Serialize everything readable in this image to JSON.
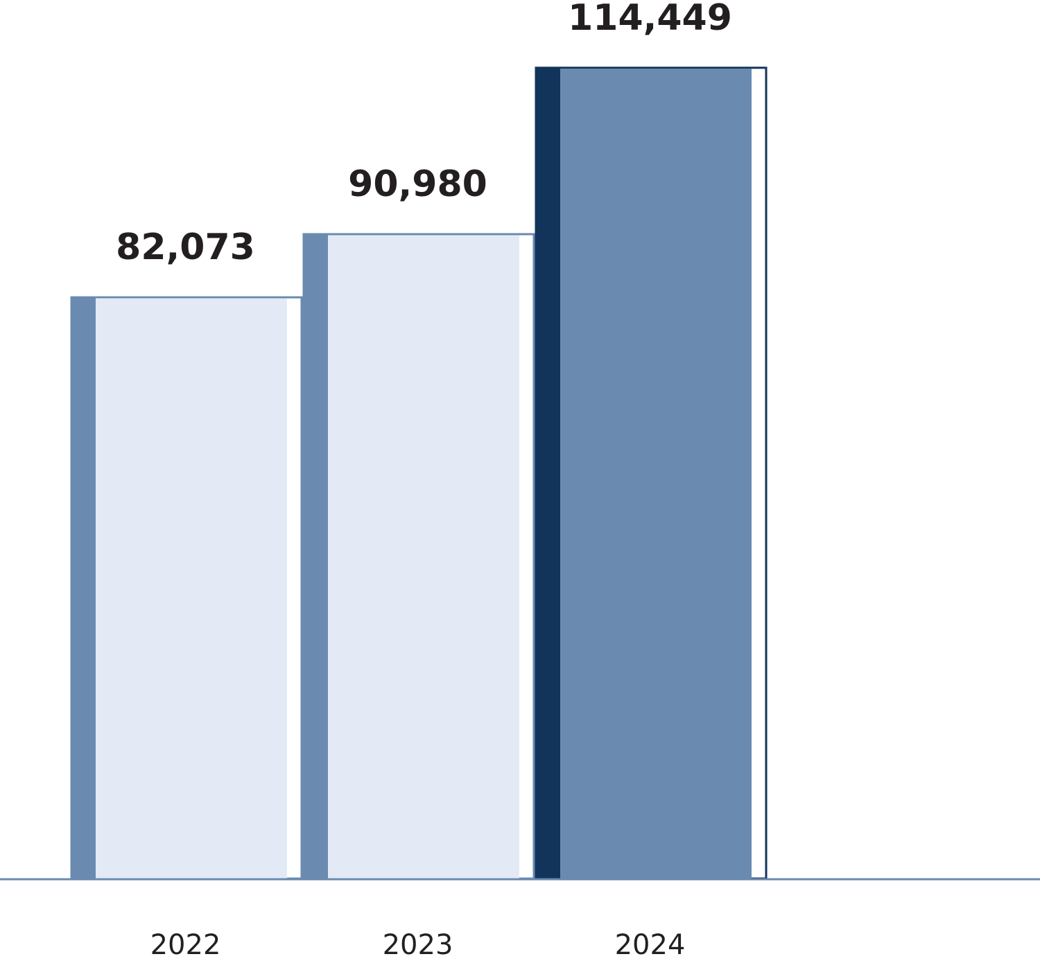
{
  "chart_data": {
    "type": "bar",
    "categories": [
      "2022",
      "2023",
      "2024"
    ],
    "values": [
      82073,
      90980,
      114449
    ],
    "value_labels": [
      "82,073",
      "90,980",
      "114,449"
    ],
    "colors": [
      "#e4eaf5",
      "#e4eaf5",
      "#6a8ab0"
    ],
    "edge_colors": [
      "#6a8ab0",
      "#6a8ab0",
      "#12345a"
    ],
    "ylim": [
      0,
      120000
    ],
    "axis_color": "#6a8ab0"
  }
}
